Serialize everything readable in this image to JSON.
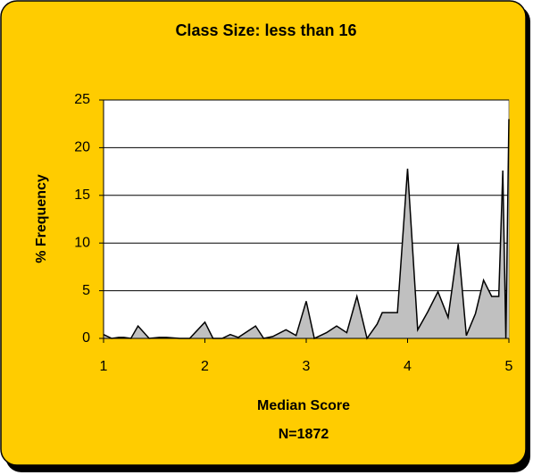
{
  "chart_data": {
    "type": "area",
    "title": "Class Size: less than 16",
    "x_label": "Median Score",
    "x_label_note": "N=1872",
    "y_label": "% Frequency",
    "color": "#c0c0c0",
    "line_color": "#000000",
    "grid": true,
    "xlim": [
      1,
      5
    ],
    "xticks": [
      1,
      2,
      3,
      4,
      5
    ],
    "ylim": [
      0,
      25
    ],
    "yticks": [
      0,
      5,
      10,
      15,
      20,
      25
    ],
    "x": [
      1,
      1.08,
      1.15,
      1.2,
      1.27,
      1.34,
      1.45,
      1.55,
      1.62,
      1.75,
      1.85,
      2,
      2.08,
      2.17,
      2.25,
      2.33,
      2.5,
      2.58,
      2.67,
      2.8,
      2.9,
      3,
      3.08,
      3.2,
      3.3,
      3.4,
      3.5,
      3.6,
      3.7,
      3.75,
      3.8,
      3.9,
      4,
      4.1,
      4.2,
      4.3,
      4.4,
      4.5,
      4.58,
      4.67,
      4.75,
      4.83,
      4.9,
      4.94,
      4.97,
      5
    ],
    "values": [
      0.4,
      0,
      0.1,
      0.1,
      0,
      1.3,
      0,
      0.1,
      0.1,
      0,
      0,
      1.7,
      0,
      0,
      0.4,
      0.1,
      1.3,
      0,
      0.2,
      0.9,
      0.3,
      3.9,
      0,
      0.6,
      1.3,
      0.6,
      4.4,
      0,
      1.5,
      2.7,
      2.7,
      2.7,
      17.8,
      0.9,
      2.8,
      4.9,
      2.2,
      9.9,
      0.3,
      2.6,
      6.1,
      4.4,
      4.4,
      17.6,
      0,
      23
    ]
  }
}
